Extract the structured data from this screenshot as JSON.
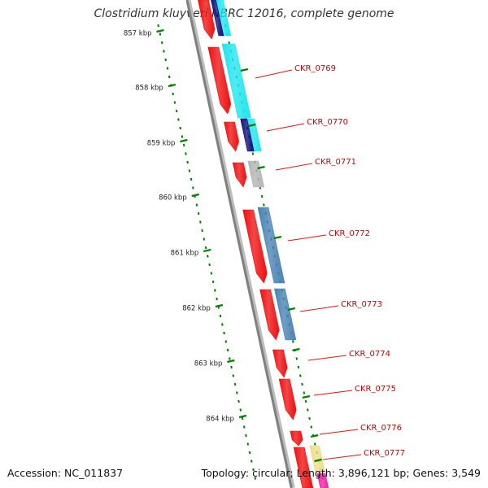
{
  "title": "Clostridium kluyveri NBRC 12016, complete genome",
  "accession": "Accession: NC_011837",
  "topology": "Topology: circular; Length: 3,896,121 bp; Genes: 3,549",
  "colors": {
    "backbone": "#808080",
    "cds": "#ee1111",
    "ticks": "#008000",
    "label": "#cc0000",
    "cyan": "#1ee6ee",
    "navy": "#10107a",
    "gray": "#b4b4b4",
    "steelblue": "#4a82b4",
    "khaki": "#eedd88",
    "magenta": "#ee22aa"
  },
  "kbp_labels": [
    "857 kbp",
    "858 kbp",
    "859 kbp",
    "860 kbp",
    "861 kbp",
    "862 kbp",
    "863 kbp",
    "864 kbp"
  ],
  "genes": [
    {
      "id": "CKR_0769"
    },
    {
      "id": "CKR_0770"
    },
    {
      "id": "CKR_0771"
    },
    {
      "id": "CKR_0772"
    },
    {
      "id": "CKR_0773"
    },
    {
      "id": "CKR_0774"
    },
    {
      "id": "CKR_0775"
    },
    {
      "id": "CKR_0776"
    },
    {
      "id": "CKR_0777"
    }
  ]
}
